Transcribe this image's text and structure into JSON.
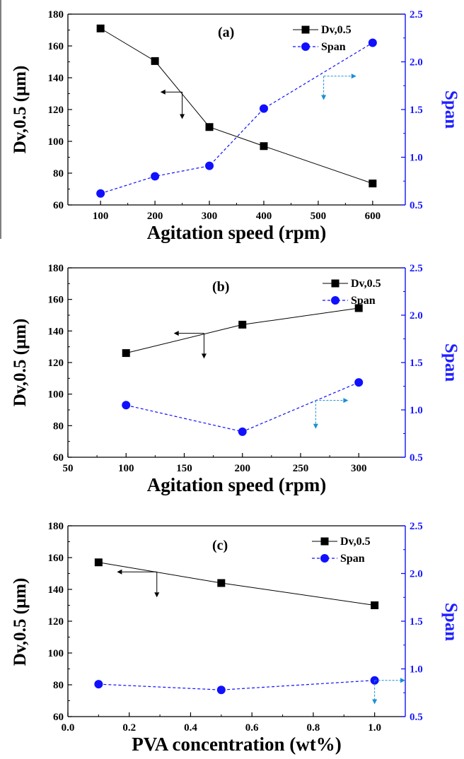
{
  "colors": {
    "dv_series": "#000000",
    "span_series": "#1010ff",
    "right_axis": "#0000ff",
    "annotation_arrow_left": "#000000",
    "annotation_arrow_right": "#1a8fd6"
  },
  "legend": {
    "dv_label": "Dv,0.5",
    "span_label": "Span",
    "placement": "top-right"
  },
  "axes_text": {
    "left_ylabel": "Dv,0.5 (μm)",
    "right_ylabel": "Span"
  },
  "chart_data": [
    {
      "panel_label": "(a)",
      "type": "line",
      "xlabel": "Agitation speed (rpm)",
      "ylabel": "Dv,0.5 (μm)",
      "y2label": "Span",
      "xlim": [
        40,
        660
      ],
      "ylim": [
        60,
        180
      ],
      "y2lim": [
        0.5,
        2.5
      ],
      "xticks": [
        100,
        200,
        300,
        400,
        500,
        600
      ],
      "xtick_labels": [
        "100",
        "200",
        "300",
        "400",
        "500",
        "600"
      ],
      "yticks": [
        60,
        80,
        100,
        120,
        140,
        160,
        180
      ],
      "y2ticks": [
        0.5,
        1.0,
        1.5,
        2.0,
        2.5
      ],
      "y2tick_labels": [
        "0.5",
        "1.0",
        "1.5",
        "2.0",
        "2.5"
      ],
      "series": [
        {
          "name": "Dv,0.5",
          "axis": "left",
          "x": [
            100,
            200,
            300,
            400,
            600
          ],
          "values": [
            171,
            150.5,
            109,
            97,
            73.5
          ]
        },
        {
          "name": "Span",
          "axis": "right",
          "x": [
            100,
            200,
            300,
            400,
            600
          ],
          "values": [
            0.62,
            0.8,
            0.91,
            1.51,
            2.2
          ]
        }
      ],
      "arrows": {
        "left": {
          "x": 250,
          "y": 131,
          "len_x": 40,
          "len_y": -17
        },
        "right": {
          "x": 510,
          "y": 1.85,
          "len_x": 60,
          "len_y": -0.25
        }
      }
    },
    {
      "panel_label": "(b)",
      "type": "line",
      "xlabel": "Agitation speed (rpm)",
      "ylabel": "Dv,0.5 (μm)",
      "y2label": "Span",
      "xlim": [
        50,
        340
      ],
      "ylim": [
        60,
        180
      ],
      "y2lim": [
        0.5,
        2.5
      ],
      "xticks": [
        50,
        100,
        150,
        200,
        250,
        300
      ],
      "xtick_labels": [
        "50",
        "100",
        "150",
        "200",
        "250",
        "300"
      ],
      "yticks": [
        60,
        80,
        100,
        120,
        140,
        160,
        180
      ],
      "y2ticks": [
        0.5,
        1.0,
        1.5,
        2.0,
        2.5
      ],
      "y2tick_labels": [
        "0.5",
        "1.0",
        "1.5",
        "2.0",
        "2.5"
      ],
      "series": [
        {
          "name": "Dv,0.5",
          "axis": "left",
          "x": [
            100,
            200,
            300
          ],
          "values": [
            126,
            144,
            154.5
          ]
        },
        {
          "name": "Span",
          "axis": "right",
          "x": [
            100,
            200,
            300
          ],
          "values": [
            1.05,
            0.77,
            1.29
          ]
        }
      ],
      "arrows": {
        "left": {
          "x": 167,
          "y": 138.5,
          "len_x": 26,
          "len_y": -16
        },
        "right": {
          "x": 263,
          "y": 1.1,
          "len_x": 28,
          "len_y": -0.3
        }
      }
    },
    {
      "panel_label": "(c)",
      "type": "line",
      "xlabel": "PVA concentration (wt%)",
      "ylabel": "Dv,0.5 (μm)",
      "y2label": "Span",
      "xlim": [
        0.0,
        1.1
      ],
      "ylim": [
        60,
        180
      ],
      "y2lim": [
        0.5,
        2.5
      ],
      "xticks": [
        0.0,
        0.2,
        0.4,
        0.6,
        0.8,
        1.0
      ],
      "xtick_labels": [
        "0.0",
        "0.2",
        "0.4",
        "0.6",
        "0.8",
        "1.0"
      ],
      "yticks": [
        60,
        80,
        100,
        120,
        140,
        160,
        180
      ],
      "y2ticks": [
        0.5,
        1.0,
        1.5,
        2.0,
        2.5
      ],
      "y2tick_labels": [
        "0.5",
        "1.0",
        "1.5",
        "2.0",
        "2.5"
      ],
      "series": [
        {
          "name": "Dv,0.5",
          "axis": "left",
          "x": [
            0.1,
            0.5,
            1.0
          ],
          "values": [
            157,
            144,
            130
          ]
        },
        {
          "name": "Span",
          "axis": "right",
          "x": [
            0.1,
            0.5,
            1.0
          ],
          "values": [
            0.84,
            0.78,
            0.88
          ]
        }
      ],
      "arrows": {
        "left": {
          "x": 0.29,
          "y": 151,
          "len_x": 0.13,
          "len_y": -16
        },
        "right": {
          "x": 1.0,
          "y": 0.88,
          "len_x": 0.1,
          "len_y": -0.25
        }
      }
    }
  ]
}
